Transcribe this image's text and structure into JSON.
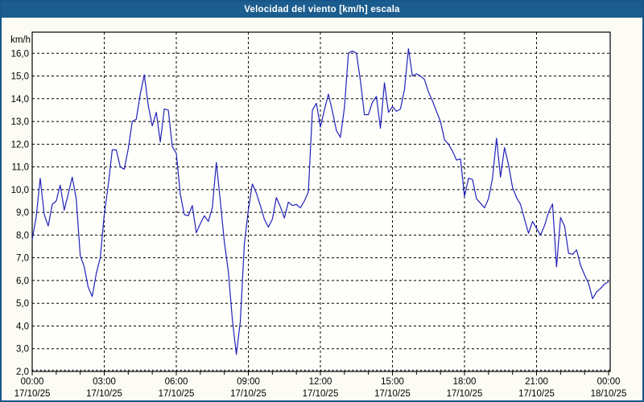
{
  "window": {
    "title": "Velocidad del viento [km/h] escala"
  },
  "colors": {
    "title_bar": "#1b5d8e",
    "border": "#17568a",
    "margin_bg": "#fcfcf5",
    "plot_bg": "#fefefb",
    "line": "#2222bb",
    "grid": "#000000",
    "frame": "#000000",
    "title_text": "#ffffff",
    "label_text": "#000000"
  },
  "y_axis": {
    "unit_label": "km/h",
    "tick_labels": [
      "16,0",
      "15,0",
      "14,0",
      "13,0",
      "12,0",
      "11,0",
      "10,0",
      "9,0",
      "8,0",
      "7,0",
      "6,0",
      "5,0",
      "4,0",
      "3,0",
      "2,0"
    ],
    "min": 2.0,
    "max": 16.9,
    "tick_step": 1.0
  },
  "x_axis": {
    "labels": [
      {
        "time": "00:00",
        "date": "17/10/25"
      },
      {
        "time": "03:00",
        "date": "17/10/25"
      },
      {
        "time": "06:00",
        "date": "17/10/25"
      },
      {
        "time": "09:00",
        "date": "17/10/25"
      },
      {
        "time": "12:00",
        "date": "17/10/25"
      },
      {
        "time": "15:00",
        "date": "17/10/25"
      },
      {
        "time": "18:00",
        "date": "17/10/25"
      },
      {
        "time": "21:00",
        "date": "17/10/25"
      },
      {
        "time": "00:00",
        "date": "18/10/25"
      }
    ],
    "hours_span": 24,
    "gridline_hours": [
      3,
      6,
      9,
      12,
      15,
      18,
      21
    ]
  },
  "chart_data": {
    "type": "line",
    "title": "Velocidad del viento [km/h] escala",
    "ylabel": "km/h",
    "xlabel": "",
    "ylim": [
      2.0,
      16.9
    ],
    "grid": true,
    "legend": "none",
    "x_start": "17/10/25 00:00",
    "x_end": "18/10/25 00:00",
    "sample_interval_minutes": 10,
    "values": [
      7.8,
      8.8,
      10.5,
      8.9,
      8.4,
      9.35,
      9.5,
      10.2,
      9.1,
      9.8,
      10.55,
      9.6,
      7.1,
      6.6,
      5.7,
      5.3,
      6.3,
      7.0,
      8.9,
      10.2,
      11.75,
      11.75,
      11.0,
      10.9,
      11.8,
      13.0,
      13.1,
      14.2,
      15.05,
      13.7,
      12.8,
      13.4,
      12.1,
      13.55,
      13.5,
      11.9,
      11.6,
      9.8,
      8.9,
      8.85,
      9.3,
      8.1,
      8.5,
      8.85,
      8.6,
      9.2,
      11.2,
      9.5,
      7.7,
      6.4,
      4.3,
      2.75,
      4.2,
      7.6,
      9.1,
      10.25,
      9.85,
      9.3,
      8.7,
      8.35,
      8.7,
      9.65,
      9.25,
      8.75,
      9.45,
      9.3,
      9.35,
      9.2,
      9.5,
      9.9,
      13.5,
      13.8,
      12.75,
      13.5,
      14.2,
      13.45,
      12.6,
      12.3,
      13.6,
      16.0,
      16.1,
      16.0,
      14.8,
      13.3,
      13.3,
      13.85,
      14.1,
      12.7,
      14.7,
      13.4,
      13.65,
      13.45,
      13.55,
      14.4,
      16.2,
      15.0,
      15.1,
      15.0,
      14.85,
      14.3,
      13.9,
      13.45,
      13.0,
      12.2,
      12.0,
      11.7,
      11.3,
      11.35,
      9.7,
      10.5,
      10.45,
      9.6,
      9.4,
      9.2,
      9.6,
      10.5,
      12.26,
      10.55,
      11.85,
      11.1,
      10.1,
      9.65,
      9.35,
      8.7,
      8.08,
      8.6,
      8.3,
      8.0,
      8.42,
      9.0,
      9.37,
      6.6,
      8.77,
      8.4,
      7.2,
      7.15,
      7.35,
      6.67,
      6.25,
      5.88,
      5.2,
      5.5,
      5.65,
      5.85,
      5.95
    ]
  }
}
